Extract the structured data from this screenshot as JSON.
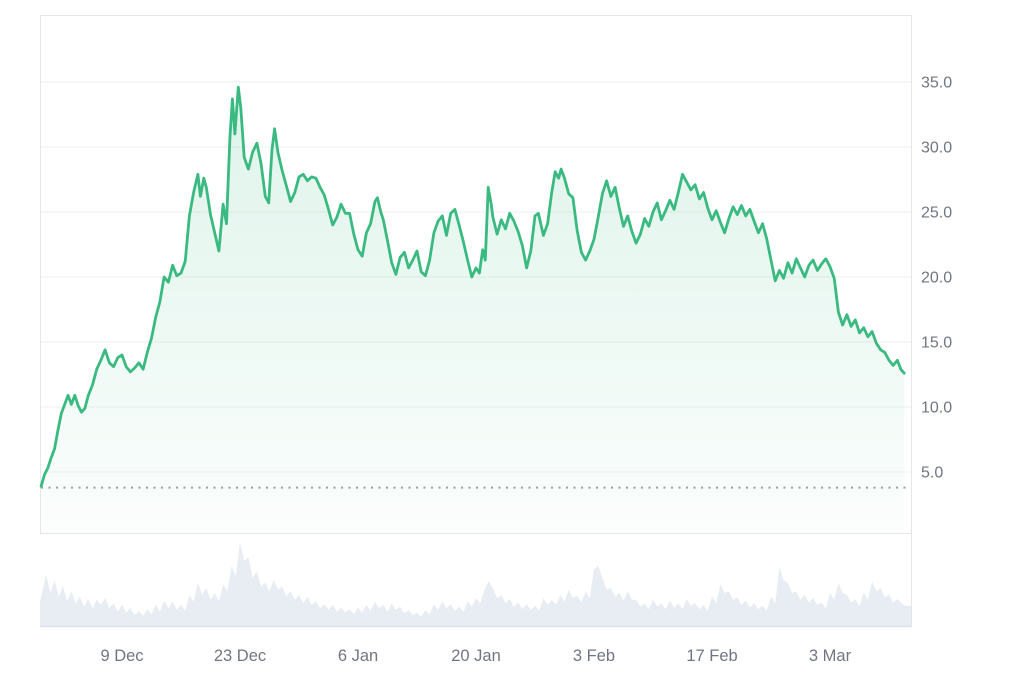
{
  "page": {
    "background": "#ffffff"
  },
  "chart": {
    "colors": {
      "accent_line": "#3aba81",
      "fill_top": "rgba(58,186,129,0.17)",
      "fill_bottom": "rgba(58,186,129,0.02)",
      "grid": "#eef0f2",
      "frame": "#e4e7ea",
      "axis_text": "#6f7683",
      "volume_fill": "#e8edf3",
      "volume_edge": "#dde2e9",
      "dotted_baseline": "#9a9fa6"
    }
  },
  "chart_data": {
    "type": "line",
    "title": "",
    "xlabel": "",
    "ylabel": "",
    "legend": "none",
    "grid": "horizontal",
    "y_axis": {
      "side": "right",
      "ticks": [
        {
          "label": "35.0",
          "value": 35
        },
        {
          "label": "30.0",
          "value": 30
        },
        {
          "label": "25.0",
          "value": 25
        },
        {
          "label": "20.0",
          "value": 20
        },
        {
          "label": "15.0",
          "value": 15
        },
        {
          "label": "10.0",
          "value": 10
        },
        {
          "label": "5.0",
          "value": 5
        }
      ],
      "visible_range": [
        0.3,
        40.2
      ]
    },
    "x_axis": {
      "unit": "days",
      "ticks": [
        {
          "label": "9 Dec",
          "x": 10
        },
        {
          "label": "23 Dec",
          "x": 24
        },
        {
          "label": "6 Jan",
          "x": 38
        },
        {
          "label": "20 Jan",
          "x": 52
        },
        {
          "label": "3 Feb",
          "x": 66
        },
        {
          "label": "17 Feb",
          "x": 80
        },
        {
          "label": "3 Mar",
          "x": 94
        }
      ],
      "visible_range": [
        0,
        103.6
      ]
    },
    "baseline_dotted_value": 3.8,
    "price_series": [
      [
        0.4,
        3.9
      ],
      [
        0.8,
        4.8
      ],
      [
        1.2,
        5.3
      ],
      [
        1.6,
        6.1
      ],
      [
        2,
        6.8
      ],
      [
        2.4,
        8.2
      ],
      [
        2.8,
        9.5
      ],
      [
        3.2,
        10.2
      ],
      [
        3.6,
        10.9
      ],
      [
        4,
        10.2
      ],
      [
        4.4,
        10.9
      ],
      [
        4.8,
        10.1
      ],
      [
        5.2,
        9.6
      ],
      [
        5.6,
        9.9
      ],
      [
        6,
        10.9
      ],
      [
        6.5,
        11.7
      ],
      [
        7,
        12.9
      ],
      [
        7.5,
        13.6
      ],
      [
        8,
        14.4
      ],
      [
        8.5,
        13.4
      ],
      [
        9,
        13.1
      ],
      [
        9.5,
        13.8
      ],
      [
        10,
        14.0
      ],
      [
        10.5,
        13.1
      ],
      [
        11,
        12.7
      ],
      [
        11.5,
        13.0
      ],
      [
        12,
        13.4
      ],
      [
        12.5,
        12.9
      ],
      [
        13,
        14.2
      ],
      [
        13.5,
        15.3
      ],
      [
        14,
        16.9
      ],
      [
        14.5,
        18.1
      ],
      [
        15,
        20.0
      ],
      [
        15.5,
        19.6
      ],
      [
        16,
        20.9
      ],
      [
        16.5,
        20.1
      ],
      [
        17,
        20.3
      ],
      [
        17.5,
        21.2
      ],
      [
        18,
        24.7
      ],
      [
        18.5,
        26.5
      ],
      [
        19,
        27.9
      ],
      [
        19.3,
        26.2
      ],
      [
        19.7,
        27.6
      ],
      [
        20,
        26.9
      ],
      [
        20.5,
        24.8
      ],
      [
        21,
        23.4
      ],
      [
        21.5,
        22.0
      ],
      [
        22,
        25.6
      ],
      [
        22.4,
        24.1
      ],
      [
        22.8,
        30.7
      ],
      [
        23.1,
        33.7
      ],
      [
        23.4,
        31.0
      ],
      [
        23.8,
        34.6
      ],
      [
        24.1,
        33.0
      ],
      [
        24.5,
        29.2
      ],
      [
        25,
        28.3
      ],
      [
        25.5,
        29.6
      ],
      [
        26,
        30.3
      ],
      [
        26.5,
        28.7
      ],
      [
        27,
        26.2
      ],
      [
        27.4,
        25.7
      ],
      [
        27.8,
        29.8
      ],
      [
        28.1,
        31.4
      ],
      [
        28.5,
        29.6
      ],
      [
        29,
        28.2
      ],
      [
        29.5,
        27.0
      ],
      [
        30,
        25.8
      ],
      [
        30.5,
        26.5
      ],
      [
        31,
        27.7
      ],
      [
        31.5,
        27.9
      ],
      [
        32,
        27.4
      ],
      [
        32.5,
        27.7
      ],
      [
        33,
        27.6
      ],
      [
        33.5,
        26.9
      ],
      [
        34,
        26.3
      ],
      [
        34.5,
        25.2
      ],
      [
        35,
        24.0
      ],
      [
        35.5,
        24.6
      ],
      [
        36,
        25.6
      ],
      [
        36.5,
        24.9
      ],
      [
        37,
        24.9
      ],
      [
        37.5,
        23.3
      ],
      [
        38,
        22.1
      ],
      [
        38.5,
        21.6
      ],
      [
        39,
        23.4
      ],
      [
        39.5,
        24.1
      ],
      [
        40,
        25.8
      ],
      [
        40.3,
        26.1
      ],
      [
        40.7,
        25.0
      ],
      [
        41,
        24.4
      ],
      [
        41.5,
        22.8
      ],
      [
        42,
        21.1
      ],
      [
        42.5,
        20.2
      ],
      [
        43,
        21.5
      ],
      [
        43.5,
        21.9
      ],
      [
        44,
        20.7
      ],
      [
        44.5,
        21.3
      ],
      [
        45,
        22.0
      ],
      [
        45.5,
        20.4
      ],
      [
        46,
        20.1
      ],
      [
        46.5,
        21.3
      ],
      [
        47,
        23.4
      ],
      [
        47.5,
        24.3
      ],
      [
        48,
        24.7
      ],
      [
        48.5,
        23.2
      ],
      [
        49,
        24.9
      ],
      [
        49.5,
        25.2
      ],
      [
        50,
        24.0
      ],
      [
        50.5,
        22.7
      ],
      [
        51,
        21.3
      ],
      [
        51.5,
        20.0
      ],
      [
        52,
        20.7
      ],
      [
        52.4,
        20.3
      ],
      [
        52.8,
        22.1
      ],
      [
        53.1,
        21.3
      ],
      [
        53.45,
        26.9
      ],
      [
        53.8,
        25.6
      ],
      [
        54,
        24.6
      ],
      [
        54.5,
        23.3
      ],
      [
        55,
        24.4
      ],
      [
        55.5,
        23.7
      ],
      [
        56,
        24.9
      ],
      [
        56.5,
        24.3
      ],
      [
        57,
        23.5
      ],
      [
        57.5,
        22.4
      ],
      [
        58,
        20.7
      ],
      [
        58.5,
        22.0
      ],
      [
        59,
        24.7
      ],
      [
        59.4,
        24.9
      ],
      [
        60,
        23.2
      ],
      [
        60.5,
        24.1
      ],
      [
        61,
        26.6
      ],
      [
        61.4,
        28.1
      ],
      [
        61.8,
        27.6
      ],
      [
        62.1,
        28.3
      ],
      [
        62.5,
        27.6
      ],
      [
        63,
        26.4
      ],
      [
        63.5,
        26.1
      ],
      [
        64,
        23.6
      ],
      [
        64.5,
        21.9
      ],
      [
        65,
        21.3
      ],
      [
        65.5,
        22.0
      ],
      [
        66,
        22.9
      ],
      [
        66.5,
        24.6
      ],
      [
        67,
        26.4
      ],
      [
        67.5,
        27.4
      ],
      [
        68,
        26.2
      ],
      [
        68.5,
        26.9
      ],
      [
        69,
        25.3
      ],
      [
        69.5,
        23.9
      ],
      [
        70,
        24.7
      ],
      [
        70.5,
        23.5
      ],
      [
        71,
        22.6
      ],
      [
        71.5,
        23.3
      ],
      [
        72,
        24.5
      ],
      [
        72.5,
        23.9
      ],
      [
        73,
        25.0
      ],
      [
        73.5,
        25.7
      ],
      [
        74,
        24.4
      ],
      [
        74.5,
        25.1
      ],
      [
        75,
        25.9
      ],
      [
        75.5,
        25.2
      ],
      [
        76,
        26.5
      ],
      [
        76.5,
        27.9
      ],
      [
        77,
        27.3
      ],
      [
        77.5,
        26.7
      ],
      [
        78,
        27.1
      ],
      [
        78.5,
        26.0
      ],
      [
        79,
        26.5
      ],
      [
        79.5,
        25.3
      ],
      [
        80,
        24.4
      ],
      [
        80.5,
        25.1
      ],
      [
        81,
        24.2
      ],
      [
        81.5,
        23.4
      ],
      [
        82,
        24.5
      ],
      [
        82.5,
        25.4
      ],
      [
        83,
        24.8
      ],
      [
        83.5,
        25.5
      ],
      [
        84,
        24.7
      ],
      [
        84.5,
        25.2
      ],
      [
        85,
        24.3
      ],
      [
        85.5,
        23.4
      ],
      [
        86,
        24.1
      ],
      [
        86.5,
        22.9
      ],
      [
        87,
        21.3
      ],
      [
        87.5,
        19.7
      ],
      [
        88,
        20.5
      ],
      [
        88.5,
        19.9
      ],
      [
        89,
        21.1
      ],
      [
        89.5,
        20.3
      ],
      [
        90,
        21.4
      ],
      [
        90.5,
        20.7
      ],
      [
        91,
        20.0
      ],
      [
        91.5,
        20.9
      ],
      [
        92,
        21.3
      ],
      [
        92.5,
        20.5
      ],
      [
        93,
        21.0
      ],
      [
        93.5,
        21.4
      ],
      [
        94,
        20.8
      ],
      [
        94.5,
        19.9
      ],
      [
        95,
        17.3
      ],
      [
        95.5,
        16.3
      ],
      [
        96,
        17.1
      ],
      [
        96.5,
        16.2
      ],
      [
        97,
        16.7
      ],
      [
        97.5,
        15.7
      ],
      [
        98,
        16.1
      ],
      [
        98.5,
        15.4
      ],
      [
        99,
        15.8
      ],
      [
        99.5,
        14.9
      ],
      [
        100,
        14.4
      ],
      [
        100.5,
        14.2
      ],
      [
        101,
        13.6
      ],
      [
        101.5,
        13.2
      ],
      [
        102,
        13.6
      ],
      [
        102.4,
        12.9
      ],
      [
        102.8,
        12.6
      ]
    ],
    "volume_series_relative": [
      [
        0.3,
        0.3
      ],
      [
        1,
        0.62
      ],
      [
        1.5,
        0.4
      ],
      [
        2,
        0.55
      ],
      [
        2.5,
        0.36
      ],
      [
        3,
        0.48
      ],
      [
        3.5,
        0.3
      ],
      [
        4,
        0.42
      ],
      [
        4.5,
        0.28
      ],
      [
        5,
        0.36
      ],
      [
        5.5,
        0.24
      ],
      [
        6,
        0.33
      ],
      [
        6.5,
        0.22
      ],
      [
        7,
        0.32
      ],
      [
        7.5,
        0.26
      ],
      [
        8,
        0.34
      ],
      [
        8.5,
        0.22
      ],
      [
        9,
        0.28
      ],
      [
        9.5,
        0.18
      ],
      [
        10,
        0.26
      ],
      [
        10.5,
        0.17
      ],
      [
        11,
        0.22
      ],
      [
        11.5,
        0.14
      ],
      [
        12,
        0.19
      ],
      [
        12.5,
        0.13
      ],
      [
        13,
        0.21
      ],
      [
        13.5,
        0.15
      ],
      [
        14,
        0.26
      ],
      [
        14.5,
        0.18
      ],
      [
        15,
        0.31
      ],
      [
        15.5,
        0.22
      ],
      [
        16,
        0.3
      ],
      [
        16.5,
        0.2
      ],
      [
        17,
        0.26
      ],
      [
        17.5,
        0.19
      ],
      [
        18,
        0.38
      ],
      [
        18.5,
        0.3
      ],
      [
        19,
        0.52
      ],
      [
        19.5,
        0.38
      ],
      [
        20,
        0.46
      ],
      [
        20.5,
        0.32
      ],
      [
        21,
        0.4
      ],
      [
        21.5,
        0.3
      ],
      [
        22,
        0.5
      ],
      [
        22.5,
        0.42
      ],
      [
        23,
        0.72
      ],
      [
        23.5,
        0.6
      ],
      [
        24,
        1.0
      ],
      [
        24.5,
        0.78
      ],
      [
        25,
        0.82
      ],
      [
        25.5,
        0.58
      ],
      [
        26,
        0.65
      ],
      [
        26.5,
        0.48
      ],
      [
        27,
        0.52
      ],
      [
        27.5,
        0.42
      ],
      [
        28,
        0.56
      ],
      [
        28.5,
        0.44
      ],
      [
        29,
        0.48
      ],
      [
        29.5,
        0.36
      ],
      [
        30,
        0.42
      ],
      [
        30.5,
        0.32
      ],
      [
        31,
        0.38
      ],
      [
        31.5,
        0.28
      ],
      [
        32,
        0.36
      ],
      [
        32.5,
        0.26
      ],
      [
        33,
        0.3
      ],
      [
        33.5,
        0.22
      ],
      [
        34,
        0.27
      ],
      [
        34.5,
        0.2
      ],
      [
        35,
        0.26
      ],
      [
        35.5,
        0.18
      ],
      [
        36,
        0.23
      ],
      [
        36.5,
        0.17
      ],
      [
        37,
        0.21
      ],
      [
        37.5,
        0.15
      ],
      [
        38,
        0.23
      ],
      [
        38.5,
        0.17
      ],
      [
        39,
        0.26
      ],
      [
        39.5,
        0.19
      ],
      [
        40,
        0.3
      ],
      [
        40.5,
        0.22
      ],
      [
        41,
        0.26
      ],
      [
        41.5,
        0.18
      ],
      [
        42,
        0.28
      ],
      [
        42.5,
        0.2
      ],
      [
        43,
        0.24
      ],
      [
        43.5,
        0.16
      ],
      [
        44,
        0.2
      ],
      [
        44.5,
        0.14
      ],
      [
        45,
        0.17
      ],
      [
        45.5,
        0.12
      ],
      [
        46,
        0.2
      ],
      [
        46.5,
        0.15
      ],
      [
        47,
        0.27
      ],
      [
        47.5,
        0.2
      ],
      [
        48,
        0.3
      ],
      [
        48.5,
        0.22
      ],
      [
        49,
        0.27
      ],
      [
        49.5,
        0.19
      ],
      [
        50,
        0.24
      ],
      [
        50.5,
        0.18
      ],
      [
        51,
        0.3
      ],
      [
        51.5,
        0.24
      ],
      [
        52,
        0.34
      ],
      [
        52.5,
        0.28
      ],
      [
        53,
        0.44
      ],
      [
        53.5,
        0.54
      ],
      [
        54,
        0.46
      ],
      [
        54.5,
        0.34
      ],
      [
        55,
        0.38
      ],
      [
        55.5,
        0.28
      ],
      [
        56,
        0.33
      ],
      [
        56.5,
        0.24
      ],
      [
        57,
        0.29
      ],
      [
        57.5,
        0.21
      ],
      [
        58,
        0.27
      ],
      [
        58.5,
        0.2
      ],
      [
        59,
        0.25
      ],
      [
        59.5,
        0.19
      ],
      [
        60,
        0.34
      ],
      [
        60.5,
        0.26
      ],
      [
        61,
        0.32
      ],
      [
        61.5,
        0.26
      ],
      [
        62,
        0.38
      ],
      [
        62.5,
        0.3
      ],
      [
        63,
        0.44
      ],
      [
        63.5,
        0.34
      ],
      [
        64,
        0.37
      ],
      [
        64.5,
        0.29
      ],
      [
        65,
        0.42
      ],
      [
        65.5,
        0.34
      ],
      [
        66,
        0.68
      ],
      [
        66.5,
        0.72
      ],
      [
        67,
        0.58
      ],
      [
        67.5,
        0.44
      ],
      [
        68,
        0.46
      ],
      [
        68.5,
        0.36
      ],
      [
        69,
        0.4
      ],
      [
        69.5,
        0.31
      ],
      [
        70,
        0.42
      ],
      [
        70.5,
        0.32
      ],
      [
        71,
        0.32
      ],
      [
        71.5,
        0.24
      ],
      [
        72,
        0.28
      ],
      [
        72.5,
        0.21
      ],
      [
        73,
        0.32
      ],
      [
        73.5,
        0.24
      ],
      [
        74,
        0.28
      ],
      [
        74.5,
        0.21
      ],
      [
        75,
        0.31
      ],
      [
        75.5,
        0.23
      ],
      [
        76,
        0.28
      ],
      [
        76.5,
        0.21
      ],
      [
        77,
        0.33
      ],
      [
        77.5,
        0.25
      ],
      [
        78,
        0.28
      ],
      [
        78.5,
        0.21
      ],
      [
        79,
        0.26
      ],
      [
        79.5,
        0.19
      ],
      [
        80,
        0.36
      ],
      [
        80.5,
        0.28
      ],
      [
        81,
        0.5
      ],
      [
        81.5,
        0.4
      ],
      [
        82,
        0.42
      ],
      [
        82.5,
        0.32
      ],
      [
        83,
        0.35
      ],
      [
        83.5,
        0.26
      ],
      [
        84,
        0.31
      ],
      [
        84.5,
        0.23
      ],
      [
        85,
        0.28
      ],
      [
        85.5,
        0.21
      ],
      [
        86,
        0.25
      ],
      [
        86.5,
        0.19
      ],
      [
        87,
        0.36
      ],
      [
        87.5,
        0.28
      ],
      [
        88,
        0.7
      ],
      [
        88.5,
        0.55
      ],
      [
        89,
        0.52
      ],
      [
        89.5,
        0.4
      ],
      [
        90,
        0.42
      ],
      [
        90.5,
        0.32
      ],
      [
        91,
        0.38
      ],
      [
        91.5,
        0.29
      ],
      [
        92,
        0.34
      ],
      [
        92.5,
        0.26
      ],
      [
        93,
        0.29
      ],
      [
        93.5,
        0.22
      ],
      [
        94,
        0.4
      ],
      [
        94.5,
        0.32
      ],
      [
        95,
        0.52
      ],
      [
        95.5,
        0.4
      ],
      [
        96,
        0.38
      ],
      [
        96.5,
        0.29
      ],
      [
        97,
        0.33
      ],
      [
        97.5,
        0.25
      ],
      [
        98,
        0.41
      ],
      [
        98.5,
        0.32
      ],
      [
        99,
        0.54
      ],
      [
        99.5,
        0.42
      ],
      [
        100,
        0.46
      ],
      [
        100.5,
        0.35
      ],
      [
        101,
        0.38
      ],
      [
        101.5,
        0.29
      ],
      [
        102,
        0.33
      ],
      [
        102.8,
        0.25
      ]
    ]
  }
}
